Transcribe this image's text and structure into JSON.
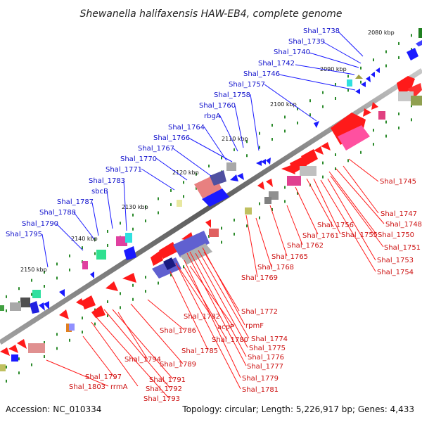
{
  "title": "Shewanella halifaxensis HAW-EB4, complete genome",
  "footer": {
    "accession": "Accession: NC_010334",
    "topology": "Topology: circular; Length: 5,226,917 bp; Genes: 4,433"
  },
  "kbp_labels": [
    "2080 kbp",
    "2090 kbp",
    "2100 kbp",
    "2110 kbp",
    "2120 kbp",
    "2130 kbp",
    "2140 kbp",
    "2150 kbp"
  ],
  "blue_labels": [
    "Shal_1738",
    "Shal_1739",
    "Shal_1740",
    "Shal_1742",
    "Shal_1746",
    "Shal_1757",
    "Shal_1758",
    "Shal_1760",
    "rbgA",
    "Shal_1764",
    "Shal_1766",
    "Shal_1767",
    "Shal_1770",
    "Shal_1771",
    "Shal_1783",
    "sbcB",
    "Shal_1787",
    "Shal_1788",
    "Shal_1790",
    "Shal_1795"
  ],
  "red_labels": [
    "Shal_1745",
    "Shal_1747",
    "Shal_1748",
    "Shal_1750",
    "Shal_1751",
    "Shal_1753",
    "Shal_1754",
    "Shal_1756",
    "Shal_1755",
    "Shal_1761",
    "Shal_1762",
    "Shal_1765",
    "Shal_1768",
    "Shal_1769",
    "Shal_1772",
    "rpmF",
    "Shal_1774",
    "Shal_1775",
    "Shal_1776",
    "Shal_1777",
    "Shal_1779",
    "Shal_1781",
    "Shal_1782",
    "acpP",
    "Shal_1780",
    "Shal_1785",
    "Shal_1786",
    "Shal_1789",
    "Shal_1791",
    "Shal_1792",
    "Shal_1793",
    "Shal_1794",
    "Shal_1797",
    "rrmA",
    "Shal_1803"
  ],
  "colors": {
    "forward": "#1a1aff",
    "reverse": "#ff1a1a",
    "backbone": "#808080",
    "tick": "#2a8a2a"
  }
}
